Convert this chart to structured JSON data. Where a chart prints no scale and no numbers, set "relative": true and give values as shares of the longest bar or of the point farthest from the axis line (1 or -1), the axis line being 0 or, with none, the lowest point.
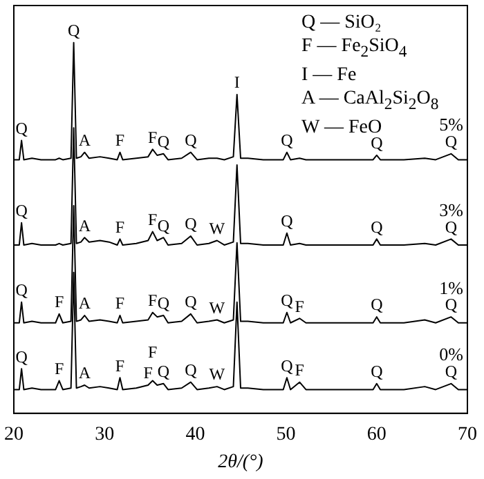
{
  "chart_data": {
    "type": "line",
    "relative": true,
    "xlabel": "2θ/(°)",
    "marker": "none",
    "xlim": [
      20,
      70
    ],
    "xticks": [
      20,
      30,
      40,
      50,
      60,
      70
    ],
    "x": [
      20,
      20.6,
      20.85,
      21.1,
      22,
      23,
      24.6,
      25.0,
      25.4,
      26.3,
      26.6,
      26.9,
      27.4,
      27.8,
      28.3,
      29.5,
      30.5,
      31.4,
      31.7,
      32.0,
      33.5,
      34.8,
      35.3,
      35.8,
      36.5,
      37.0,
      38.5,
      39.5,
      40.2,
      41.5,
      42.4,
      43.2,
      44.2,
      44.6,
      45.0,
      45.8,
      47.5,
      49.7,
      50.1,
      50.5,
      51.5,
      52.2,
      55,
      57,
      59.6,
      60.0,
      60.4,
      63,
      65.3,
      66.5,
      68.2,
      69,
      70
    ],
    "series": [
      {
        "name": "5%",
        "color": "#000000",
        "values": [
          0.684,
          0.684,
          0.736,
          0.684,
          0.688,
          0.684,
          0.684,
          0.688,
          0.684,
          0.688,
          1.0,
          0.688,
          0.692,
          0.704,
          0.688,
          0.692,
          0.688,
          0.684,
          0.704,
          0.684,
          0.688,
          0.692,
          0.712,
          0.696,
          0.7,
          0.684,
          0.688,
          0.704,
          0.684,
          0.688,
          0.688,
          0.684,
          0.692,
          0.86,
          0.688,
          0.688,
          0.684,
          0.684,
          0.704,
          0.684,
          0.688,
          0.684,
          0.684,
          0.684,
          0.684,
          0.696,
          0.684,
          0.684,
          0.688,
          0.684,
          0.7,
          0.684,
          0.684
        ]
      },
      {
        "name": "3%",
        "color": "#000000",
        "values": [
          0.454,
          0.454,
          0.514,
          0.454,
          0.458,
          0.454,
          0.454,
          0.458,
          0.454,
          0.458,
          0.77,
          0.458,
          0.462,
          0.474,
          0.462,
          0.466,
          0.462,
          0.454,
          0.47,
          0.454,
          0.458,
          0.466,
          0.49,
          0.466,
          0.474,
          0.454,
          0.458,
          0.478,
          0.454,
          0.458,
          0.466,
          0.454,
          0.462,
          0.67,
          0.458,
          0.458,
          0.454,
          0.454,
          0.486,
          0.454,
          0.458,
          0.454,
          0.454,
          0.454,
          0.454,
          0.47,
          0.454,
          0.454,
          0.458,
          0.454,
          0.47,
          0.454,
          0.454
        ]
      },
      {
        "name": "1%",
        "color": "#000000",
        "values": [
          0.244,
          0.244,
          0.3,
          0.244,
          0.248,
          0.244,
          0.244,
          0.268,
          0.244,
          0.248,
          0.56,
          0.248,
          0.252,
          0.264,
          0.248,
          0.252,
          0.248,
          0.244,
          0.264,
          0.244,
          0.248,
          0.252,
          0.272,
          0.26,
          0.264,
          0.244,
          0.248,
          0.268,
          0.244,
          0.248,
          0.252,
          0.244,
          0.252,
          0.46,
          0.248,
          0.248,
          0.244,
          0.244,
          0.272,
          0.244,
          0.256,
          0.244,
          0.244,
          0.244,
          0.244,
          0.26,
          0.244,
          0.244,
          0.252,
          0.244,
          0.26,
          0.244,
          0.244
        ]
      },
      {
        "name": "0%",
        "color": "#000000",
        "values": [
          0.064,
          0.064,
          0.12,
          0.064,
          0.068,
          0.064,
          0.064,
          0.088,
          0.064,
          0.068,
          0.38,
          0.068,
          0.072,
          0.076,
          0.068,
          0.072,
          0.068,
          0.064,
          0.096,
          0.064,
          0.068,
          0.076,
          0.088,
          0.076,
          0.08,
          0.064,
          0.068,
          0.084,
          0.064,
          0.068,
          0.072,
          0.064,
          0.072,
          0.3,
          0.068,
          0.068,
          0.064,
          0.064,
          0.096,
          0.064,
          0.084,
          0.064,
          0.064,
          0.064,
          0.064,
          0.08,
          0.064,
          0.064,
          0.072,
          0.064,
          0.08,
          0.064,
          0.064
        ]
      }
    ],
    "annotations": [
      "Q — SiO₂",
      "F — Fe$_{2}$SiO$_{4}$",
      "I — Fe",
      "A — CaAl$_{2}$Si$_{2}$O$_{8}$",
      "W — FeO",
      {
        "text": "Q",
        "x": 20.85,
        "y": 0.736
      },
      {
        "text": "Q",
        "x": 26.6,
        "y": 1.0
      },
      {
        "text": "A",
        "x": 27.8,
        "y": 0.704
      },
      {
        "text": "F",
        "x": 31.7,
        "y": 0.704
      },
      {
        "text": "F",
        "x": 35.3,
        "y": 0.712
      },
      {
        "text": "Q",
        "x": 36.5,
        "y": 0.7
      },
      {
        "text": "Q",
        "x": 39.5,
        "y": 0.704
      },
      {
        "text": "I",
        "x": 44.6,
        "y": 0.86
      },
      {
        "text": "Q",
        "x": 50.1,
        "y": 0.704
      },
      {
        "text": "Q",
        "x": 60.0,
        "y": 0.696
      },
      {
        "text": "Q",
        "x": 68.2,
        "y": 0.7
      },
      {
        "text": "Q",
        "x": 20.85,
        "y": 0.514
      },
      {
        "text": "A",
        "x": 27.8,
        "y": 0.474
      },
      {
        "text": "F",
        "x": 31.7,
        "y": 0.47
      },
      {
        "text": "F",
        "x": 35.3,
        "y": 0.49
      },
      {
        "text": "Q",
        "x": 36.5,
        "y": 0.474
      },
      {
        "text": "Q",
        "x": 39.5,
        "y": 0.478
      },
      {
        "text": "W",
        "x": 42.4,
        "y": 0.466
      },
      {
        "text": "Q",
        "x": 50.1,
        "y": 0.486
      },
      {
        "text": "Q",
        "x": 60.0,
        "y": 0.47
      },
      {
        "text": "Q",
        "x": 68.2,
        "y": 0.47
      },
      {
        "text": "Q",
        "x": 20.85,
        "y": 0.3
      },
      {
        "text": "F",
        "x": 25.0,
        "y": 0.268
      },
      {
        "text": "A",
        "x": 27.8,
        "y": 0.264
      },
      {
        "text": "F",
        "x": 31.7,
        "y": 0.264
      },
      {
        "text": "F",
        "x": 35.3,
        "y": 0.272
      },
      {
        "text": "Q",
        "x": 36.5,
        "y": 0.264
      },
      {
        "text": "Q",
        "x": 39.5,
        "y": 0.268
      },
      {
        "text": "W",
        "x": 42.4,
        "y": 0.252
      },
      {
        "text": "Q",
        "x": 50.1,
        "y": 0.272
      },
      {
        "text": "F",
        "x": 51.5,
        "y": 0.256
      },
      {
        "text": "Q",
        "x": 60.0,
        "y": 0.26
      },
      {
        "text": "Q",
        "x": 68.2,
        "y": 0.26
      },
      {
        "text": "Q",
        "x": 20.85,
        "y": 0.12
      },
      {
        "text": "F",
        "x": 25.0,
        "y": 0.088
      },
      {
        "text": "A",
        "x": 27.8,
        "y": 0.076
      },
      {
        "text": "F",
        "x": 31.7,
        "y": 0.096
      },
      {
        "text": "F",
        "x": 34.8,
        "y": 0.076
      },
      {
        "text": "F",
        "x": 35.3,
        "y": 0.088
      },
      {
        "text": "Q",
        "x": 36.5,
        "y": 0.08
      },
      {
        "text": "Q",
        "x": 39.5,
        "y": 0.084
      },
      {
        "text": "W",
        "x": 42.4,
        "y": 0.072
      },
      {
        "text": "Q",
        "x": 50.1,
        "y": 0.096
      },
      {
        "text": "F",
        "x": 51.5,
        "y": 0.084
      },
      {
        "text": "Q",
        "x": 60.0,
        "y": 0.08
      },
      {
        "text": "Q",
        "x": 68.2,
        "y": 0.08
      }
    ]
  }
}
